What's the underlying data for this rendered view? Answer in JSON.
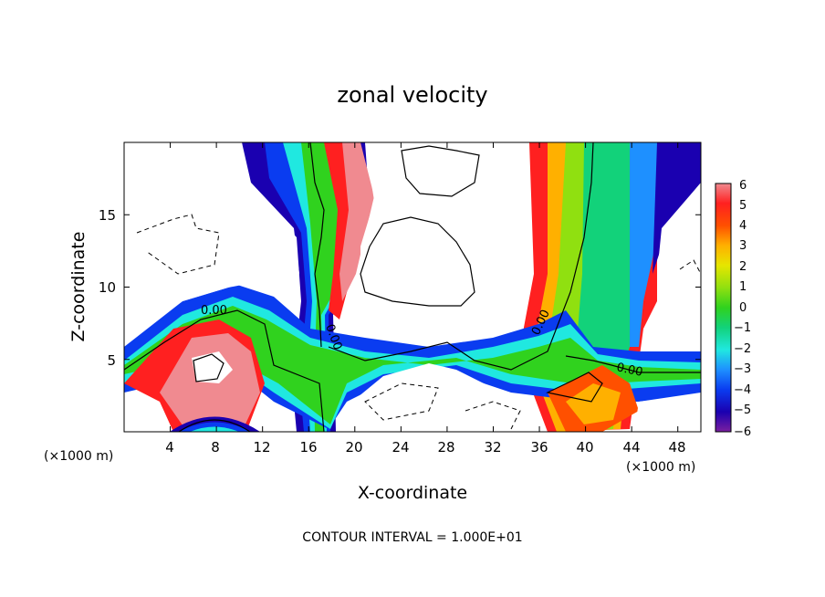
{
  "chart_data": {
    "type": "heatmap",
    "title": "zonal velocity",
    "xlabel": "X-coordinate",
    "ylabel": "Z-coordinate",
    "x_unit_label": "(×1000 m)",
    "x_unit_label_right": "(×1000 m)",
    "xlim": [
      0,
      50
    ],
    "ylim": [
      0,
      20
    ],
    "x_ticks": [
      "4",
      "8",
      "12",
      "16",
      "20",
      "24",
      "28",
      "32",
      "36",
      "40",
      "44",
      "48"
    ],
    "y_ticks": [
      "5",
      "10",
      "15"
    ],
    "colorbar_ticks": [
      "6",
      "5",
      "4",
      "3",
      "2",
      "1",
      "0",
      "−1",
      "−2",
      "−3",
      "−4",
      "−5",
      "−6"
    ],
    "colorbar_range": [
      -6,
      6
    ],
    "contour_labels": [
      "0.00",
      "0.00",
      "0.00",
      "0.00"
    ],
    "footnote": "CONTOUR INTERVAL = 1.000E+01",
    "colorscale": [
      "#7a1fa0",
      "#1a00b0",
      "#0a3cf0",
      "#1e90ff",
      "#20e8e0",
      "#12d27a",
      "#30d21e",
      "#90e010",
      "#e6e600",
      "#ffb000",
      "#ff5000",
      "#ff2020",
      "#f08a90"
    ]
  }
}
